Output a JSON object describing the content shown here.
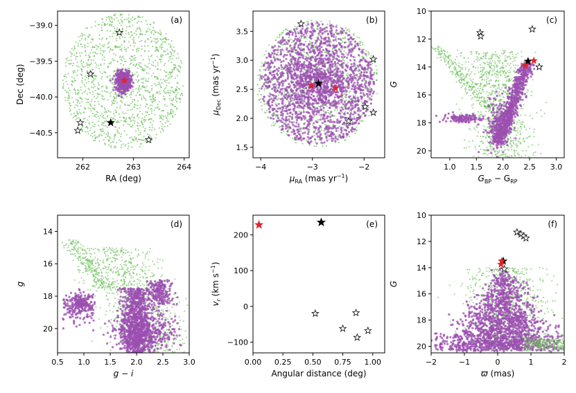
{
  "colors": {
    "green": "#6cbf5a",
    "purple": "#9b4fb0",
    "red": "#e0242a",
    "black": "#000000"
  },
  "chart_data": [
    {
      "type": "scatter",
      "panel_label": "(a)",
      "xlabel": "RA (deg)",
      "ylabel": "Dec (deg)",
      "xlim": [
        261.5,
        264.1
      ],
      "ylim": [
        -40.85,
        -38.8
      ],
      "xticks": [
        262,
        263,
        264
      ],
      "xtick_labels": [
        "262",
        "263",
        "264"
      ],
      "yticks": [
        -39.0,
        -39.5,
        -40.0,
        -40.5
      ],
      "ytick_labels": [
        "−39.0",
        "−39.5",
        "−40.0",
        "−40.5"
      ],
      "field": {
        "shape": "circle",
        "center": [
          262.8,
          -39.78
        ],
        "radius_x": 1.2,
        "radius_y": 0.95,
        "n": 1400
      },
      "cluster": {
        "center": [
          262.8,
          -39.78
        ],
        "sigma": [
          0.07,
          0.07
        ],
        "n": 500
      },
      "open_stars": [
        [
          262.72,
          -39.1
        ],
        [
          262.15,
          -39.68
        ],
        [
          261.95,
          -40.36
        ],
        [
          261.9,
          -40.47
        ],
        [
          263.3,
          -40.6
        ]
      ],
      "black_stars": [
        [
          262.55,
          -40.36
        ]
      ],
      "red_stars": [
        [
          262.82,
          -39.77
        ]
      ]
    },
    {
      "type": "scatter",
      "panel_label": "(b)",
      "xlabel": "μRA (mas yr⁻¹)",
      "ylabel": "μDec (mas yr⁻¹)",
      "xlim": [
        -4.15,
        -1.6
      ],
      "ylim": [
        1.32,
        3.85
      ],
      "xticks": [
        -4,
        -3,
        -2
      ],
      "xtick_labels": [
        "−4",
        "−3",
        "−2"
      ],
      "yticks": [
        1.5,
        2.0,
        2.5,
        3.0,
        3.5
      ],
      "ytick_labels": [
        "1.5",
        "2.0",
        "2.5",
        "3.0",
        "3.5"
      ],
      "field": {
        "shape": "circle",
        "center": [
          -2.9,
          2.6
        ],
        "radius_x": 1.18,
        "radius_y": 1.1,
        "n": 900
      },
      "cluster": {
        "shape": "circle",
        "center": [
          -2.9,
          2.6
        ],
        "radius_x": 1.1,
        "radius_y": 1.05,
        "n": 1500
      },
      "open_stars": [
        [
          -3.22,
          3.63
        ],
        [
          -1.82,
          3.02
        ],
        [
          -1.98,
          2.2
        ],
        [
          -2.3,
          1.95
        ],
        [
          -1.82,
          2.1
        ]
      ],
      "black_stars": [
        [
          -2.88,
          2.6
        ]
      ],
      "red_stars": [
        [
          -3.02,
          2.56
        ],
        [
          -2.55,
          2.52
        ]
      ]
    },
    {
      "type": "scatter",
      "panel_label": "(c)",
      "xlabel": "G_BP − G_RP",
      "ylabel": "G",
      "xlim": [
        0.65,
        3.15
      ],
      "ylim": [
        20.5,
        10.0
      ],
      "xticks": [
        1.0,
        1.5,
        2.0,
        2.5,
        3.0
      ],
      "xtick_labels": [
        "1.0",
        "1.5",
        "2.0",
        "2.5",
        "3.0"
      ],
      "yticks": [
        10,
        12,
        14,
        16,
        18,
        20
      ],
      "ytick_labels": [
        "10",
        "12",
        "14",
        "16",
        "18",
        "20"
      ],
      "open_stars": [
        [
          1.57,
          11.55
        ],
        [
          1.58,
          11.8
        ],
        [
          2.55,
          11.3
        ],
        [
          2.68,
          14.0
        ]
      ],
      "black_stars": [
        [
          2.47,
          13.6
        ]
      ],
      "red_stars": [
        [
          2.42,
          13.9
        ],
        [
          2.58,
          13.55
        ]
      ]
    },
    {
      "type": "scatter",
      "panel_label": "(d)",
      "xlabel": "g − i",
      "ylabel": "g",
      "xlim": [
        0.5,
        3.0
      ],
      "ylim": [
        21.5,
        13.0
      ],
      "xticks": [
        0.5,
        1.0,
        1.5,
        2.0,
        2.5,
        3.0
      ],
      "xtick_labels": [
        "0.5",
        "1.0",
        "1.5",
        "2.0",
        "2.5",
        "3.0"
      ],
      "yticks": [
        14,
        16,
        18,
        20
      ],
      "ytick_labels": [
        "14",
        "16",
        "18",
        "20"
      ]
    },
    {
      "type": "scatter",
      "panel_label": "(e)",
      "xlabel": "Angular distance (deg)",
      "ylabel": "v_r (km s⁻¹)",
      "xlim": [
        0.0,
        1.1
      ],
      "ylim": [
        -130,
        255
      ],
      "xticks": [
        0.0,
        0.25,
        0.5,
        0.75,
        1.0
      ],
      "xtick_labels": [
        "0.00",
        "0.25",
        "0.50",
        "0.75",
        "1.00"
      ],
      "yticks": [
        -100,
        0,
        100,
        200
      ],
      "ytick_labels": [
        "−100",
        "0",
        "100",
        "200"
      ],
      "open_stars": [
        [
          0.52,
          -20
        ],
        [
          0.75,
          -62
        ],
        [
          0.86,
          -18
        ],
        [
          0.87,
          -87
        ],
        [
          0.96,
          -68
        ]
      ],
      "black_stars": [
        [
          0.57,
          235
        ]
      ],
      "red_stars": [
        [
          0.05,
          228
        ]
      ]
    },
    {
      "type": "scatter",
      "panel_label": "(f)",
      "xlabel": "ϖ (mas)",
      "ylabel": "G",
      "xlim": [
        -2.0,
        2.0
      ],
      "ylim": [
        20.5,
        10.0
      ],
      "xticks": [
        -2,
        -1,
        0,
        1,
        2
      ],
      "xtick_labels": [
        "−2",
        "−1",
        "0",
        "1",
        "2"
      ],
      "yticks": [
        10,
        12,
        14,
        16,
        18,
        20
      ],
      "ytick_labels": [
        "10",
        "12",
        "14",
        "16",
        "18",
        "20"
      ],
      "open_stars": [
        [
          0.58,
          11.3
        ],
        [
          0.7,
          11.45
        ],
        [
          0.78,
          11.6
        ],
        [
          0.85,
          11.75
        ],
        [
          0.2,
          14.1
        ]
      ],
      "black_stars": [
        [
          0.17,
          13.5
        ]
      ],
      "red_stars": [
        [
          0.12,
          13.5
        ],
        [
          0.1,
          13.75
        ]
      ]
    }
  ]
}
